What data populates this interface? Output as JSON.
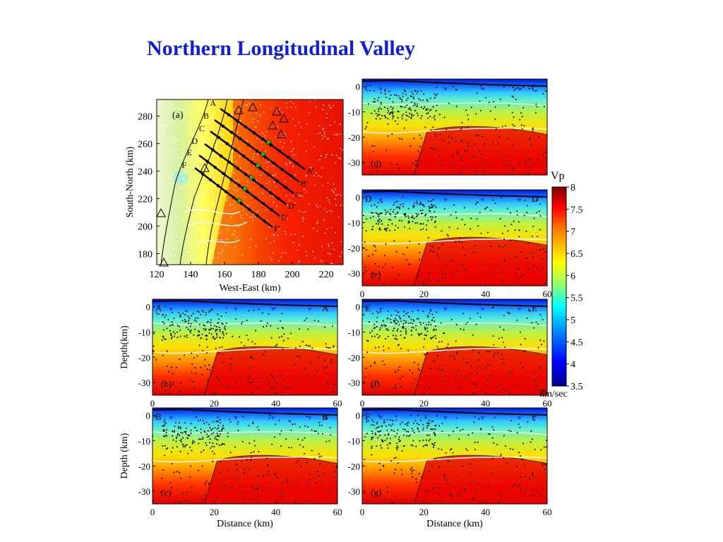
{
  "slide": {
    "title": "Northern Longitudinal Valley"
  },
  "colors": {
    "title": "#1020d0",
    "colormap": [
      "#00008f",
      "#0000ff",
      "#0080ff",
      "#00ffff",
      "#80ff80",
      "#ffff00",
      "#ff8000",
      "#ff0000",
      "#800000"
    ]
  },
  "map_panel": {
    "panel_label": "(a)",
    "xlabel": "West-East (km)",
    "ylabel": "South-North (km)",
    "xticks": [
      "120",
      "140",
      "160",
      "180",
      "200",
      "220"
    ],
    "yticks": [
      "280",
      "260",
      "240",
      "220",
      "200",
      "180"
    ],
    "xlim": [
      120,
      230
    ],
    "ylim": [
      172,
      292
    ],
    "profiles": [
      {
        "start": "A",
        "end": "A'"
      },
      {
        "start": "B",
        "end": "B'"
      },
      {
        "start": "C",
        "end": "C'"
      },
      {
        "start": "D",
        "end": "D'"
      },
      {
        "start": "E",
        "end": "E'"
      },
      {
        "start": "F",
        "end": "F'"
      }
    ]
  },
  "sections": [
    {
      "panel_label": "(b)",
      "start": "A",
      "end": "A'",
      "ylabel": "Depth(km)",
      "xlabel": ""
    },
    {
      "panel_label": "(c)",
      "start": "B",
      "end": "B'",
      "ylabel": "Depth (km)",
      "xlabel": "Distance (km)"
    },
    {
      "panel_label": "(d)",
      "start": "C",
      "end": "C'",
      "ylabel": "",
      "xlabel": ""
    },
    {
      "panel_label": "(e)",
      "start": "D",
      "end": "D'",
      "ylabel": "",
      "xlabel": ""
    },
    {
      "panel_label": "(f)",
      "start": "E",
      "end": "E'",
      "ylabel": "",
      "xlabel": ""
    },
    {
      "panel_label": "(g)",
      "start": "F",
      "end": "F'",
      "ylabel": "",
      "xlabel": "Distance (km)"
    }
  ],
  "section_axes": {
    "xticks": [
      "0",
      "20",
      "40",
      "60"
    ],
    "yticks": [
      "0",
      "-10",
      "-20",
      "-30"
    ],
    "xlim": [
      0,
      60
    ],
    "ylim": [
      -35,
      3
    ]
  },
  "colorbar": {
    "title": "Vp",
    "unit": "km/sec",
    "ticks": [
      "8",
      "7.5",
      "7",
      "6.5",
      "6",
      "5.5",
      "5",
      "4.5",
      "4",
      "3.5"
    ],
    "range": [
      3.5,
      8
    ]
  }
}
